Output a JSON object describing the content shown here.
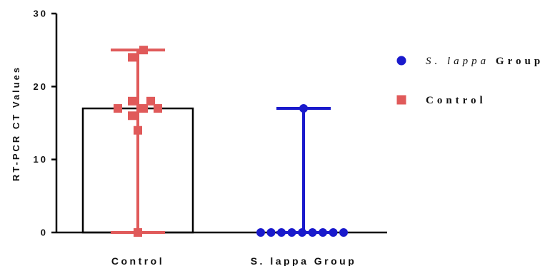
{
  "chart_data": {
    "type": "scatter",
    "ylabel": "RT-PCR CT Values",
    "xlabel": "",
    "ylim": [
      0,
      30
    ],
    "yticks": [
      "0",
      "10",
      "20",
      "30"
    ],
    "ytick_values": [
      0,
      10,
      20,
      30
    ],
    "grid": false,
    "legend_placement": "right",
    "categories": [
      "Control",
      "S. lappa Group"
    ],
    "bar": {
      "category": "Control",
      "value": 17
    },
    "series": [
      {
        "name": "Control",
        "category": "Control",
        "marker": "square",
        "color": "#e05a5a",
        "values": [
          25,
          24,
          18,
          18,
          17,
          17,
          17,
          16,
          14,
          0
        ],
        "range": [
          0,
          25
        ]
      },
      {
        "name": "S. lappa Group",
        "category": "S. lappa Group",
        "marker": "circle",
        "color": "#1a1acc",
        "values": [
          17,
          0,
          0,
          0,
          0,
          0,
          0,
          0,
          0,
          0
        ],
        "range": [
          0,
          17
        ]
      }
    ],
    "legend": [
      {
        "prefix": "S. lappa",
        "suffix": " Group",
        "marker": "circle",
        "color": "#1a1acc"
      },
      {
        "prefix": "",
        "suffix": "Control",
        "marker": "square",
        "color": "#e05a5a"
      }
    ]
  }
}
